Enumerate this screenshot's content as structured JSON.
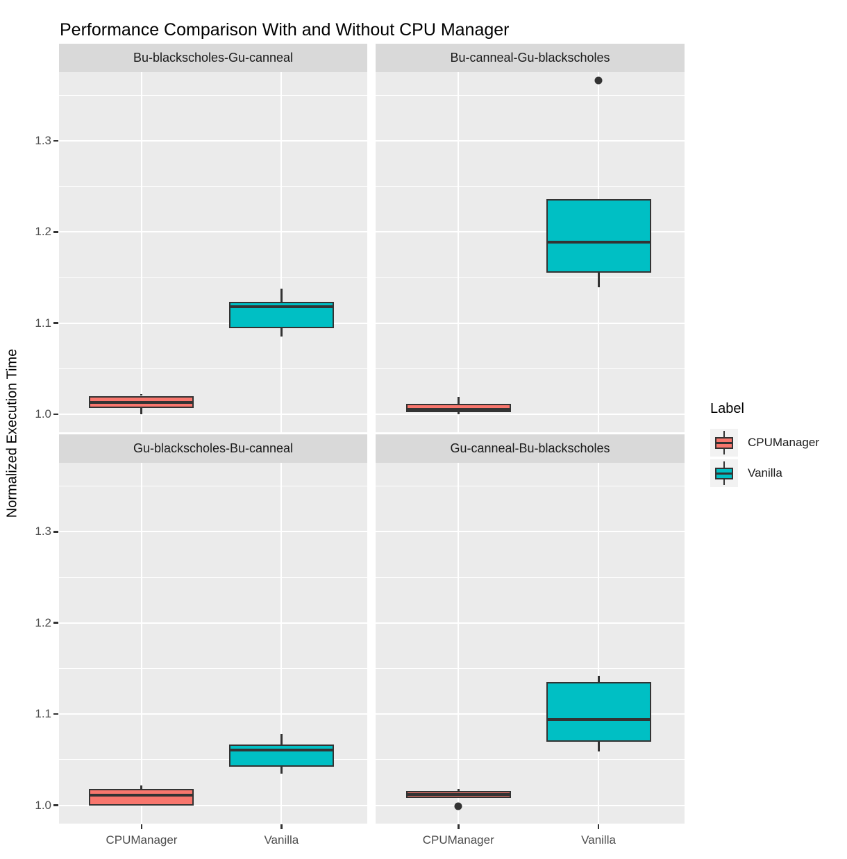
{
  "title": "Performance Comparison With and Without CPU Manager",
  "y_axis_title": "Normalized Execution Time",
  "legend": {
    "title": "Label",
    "items": [
      {
        "label": "CPUManager",
        "color": "#F8766D"
      },
      {
        "label": "Vanilla",
        "color": "#00BFC4"
      }
    ]
  },
  "colors": {
    "panel_background": "#EBEBEB",
    "strip_background": "#D9D9D9",
    "gridline": "#FFFFFF",
    "box_outline": "#333333",
    "tick_text": "#4D4D4D",
    "title_text": "#000000",
    "legend_key_background": "#F2F2F2"
  },
  "chart_data": {
    "type": "boxplot",
    "title": "Performance Comparison With and Without CPU Manager",
    "xlabel": "",
    "ylabel": "Normalized Execution Time",
    "categories": [
      "CPUManager",
      "Vanilla"
    ],
    "ylim": [
      0.98,
      1.3755
    ],
    "yticks": [
      1.0,
      1.1,
      1.2,
      1.3
    ],
    "ytick_labels": [
      "1.0",
      "1.1",
      "1.2",
      "1.3"
    ],
    "minor_gridlines": [
      1.05,
      1.15,
      1.25,
      1.35
    ],
    "grid": true,
    "legend_title": "Label",
    "legend_position": "right",
    "series_colors": {
      "CPUManager": "#F8766D",
      "Vanilla": "#00BFC4"
    },
    "facets": [
      {
        "title": "Bu-blackscholes-Gu-canneal",
        "boxes": [
          {
            "group": "CPUManager",
            "whisker_low": 1.0,
            "q1": 1.007,
            "median": 1.013,
            "q3": 1.02,
            "whisker_high": 1.022,
            "outliers": []
          },
          {
            "group": "Vanilla",
            "whisker_low": 1.085,
            "q1": 1.094,
            "median": 1.118,
            "q3": 1.123,
            "whisker_high": 1.138,
            "outliers": []
          }
        ]
      },
      {
        "title": "Bu-canneal-Gu-blackscholes",
        "boxes": [
          {
            "group": "CPUManager",
            "whisker_low": 1.0,
            "q1": 1.002,
            "median": 1.005,
            "q3": 1.011,
            "whisker_high": 1.019,
            "outliers": []
          },
          {
            "group": "Vanilla",
            "whisker_low": 1.139,
            "q1": 1.155,
            "median": 1.189,
            "q3": 1.236,
            "whisker_high": 1.236,
            "outliers": [
              1.366
            ]
          }
        ]
      },
      {
        "title": "Gu-blackscholes-Bu-canneal",
        "boxes": [
          {
            "group": "CPUManager",
            "whisker_low": 1.0,
            "q1": 1.0,
            "median": 1.011,
            "q3": 1.018,
            "whisker_high": 1.022,
            "outliers": []
          },
          {
            "group": "Vanilla",
            "whisker_low": 1.035,
            "q1": 1.042,
            "median": 1.061,
            "q3": 1.067,
            "whisker_high": 1.078,
            "outliers": []
          }
        ]
      },
      {
        "title": "Gu-canneal-Bu-blackscholes",
        "boxes": [
          {
            "group": "CPUManager",
            "whisker_low": 1.008,
            "q1": 1.008,
            "median": 1.012,
            "q3": 1.016,
            "whisker_high": 1.018,
            "outliers": [
              0.999
            ]
          },
          {
            "group": "Vanilla",
            "whisker_low": 1.059,
            "q1": 1.07,
            "median": 1.094,
            "q3": 1.135,
            "whisker_high": 1.142,
            "outliers": []
          }
        ]
      }
    ]
  }
}
